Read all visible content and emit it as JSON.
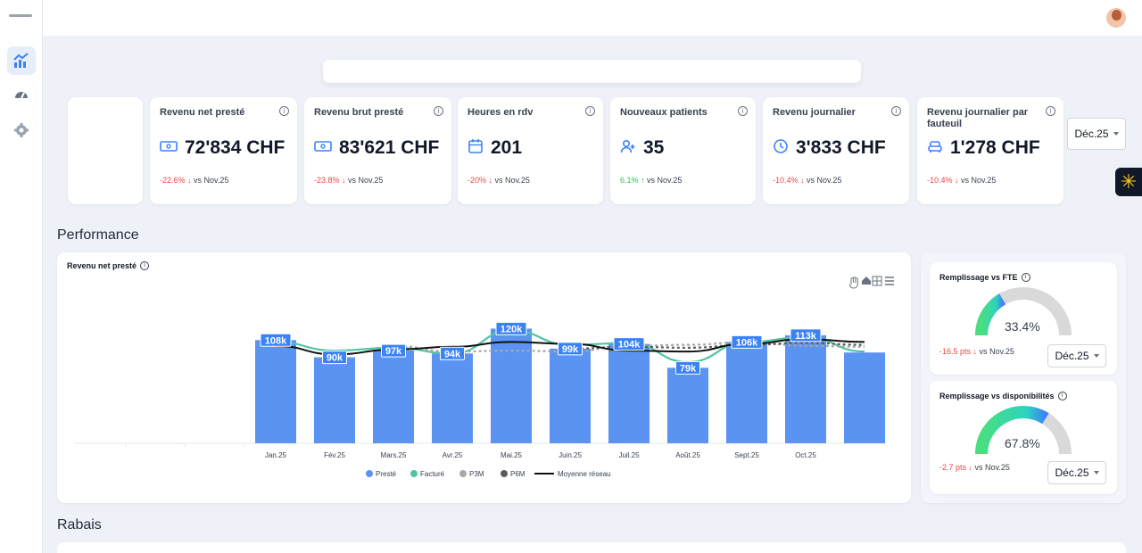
{
  "sidebar": {
    "items": [
      {
        "icon": "chart-trend-icon",
        "active": true
      },
      {
        "icon": "gauge-icon",
        "active": false
      },
      {
        "icon": "gear-icon",
        "active": false
      }
    ]
  },
  "kpis": [
    {
      "title": "Revenu net presté",
      "icon": "money-icon",
      "value": "72'834 CHF",
      "delta": "-22.6% ↓",
      "delta_color": "#ef4444",
      "compare": " vs Nov.25"
    },
    {
      "title": "Revenu brut presté",
      "icon": "money-icon",
      "value": "83'621 CHF",
      "delta": "-23.8% ↓",
      "delta_color": "#ef4444",
      "compare": " vs Nov.25"
    },
    {
      "title": "Heures en rdv",
      "icon": "calendar-icon",
      "value": "201",
      "delta": "-20% ↓",
      "delta_color": "#ef4444",
      "compare": " vs Nov.25"
    },
    {
      "title": "Nouveaux patients",
      "icon": "user-plus-icon",
      "value": "35",
      "delta": "6.1% ↑",
      "delta_color": "#22c55e",
      "compare": " vs Nov.25"
    },
    {
      "title": "Revenu journalier",
      "icon": "clock-icon",
      "value": "3'833 CHF",
      "delta": "-10.4% ↓",
      "delta_color": "#ef4444",
      "compare": " vs Nov.25"
    },
    {
      "title": "Revenu journalier par fauteuil",
      "icon": "armchair-icon",
      "value": "1'278 CHF",
      "delta": "-10.4% ↓",
      "delta_color": "#ef4444",
      "compare": " vs Nov.25"
    }
  ],
  "period_select": "Déc.25",
  "sections": {
    "performance": "Performance",
    "rabais": "Rabais"
  },
  "chart_title": "Revenu net presté",
  "chart_data": {
    "type": "bar",
    "categories": [
      "",
      "",
      "",
      "Jan.25",
      "Fév.25",
      "Mars.25",
      "Avr.25",
      "Mai.25",
      "Juin.25",
      "Juil.25",
      "Août.25",
      "Sept.25",
      "Oct.25",
      ""
    ],
    "series": [
      {
        "name": "Presté",
        "type": "bar",
        "color": "#5b93f3",
        "values": [
          null,
          null,
          null,
          108,
          90,
          97,
          94,
          120,
          99,
          104,
          79,
          106,
          113,
          95
        ]
      },
      {
        "name": "Facturé",
        "type": "line",
        "color": "#4fc4a4",
        "values": [
          null,
          null,
          null,
          106,
          97,
          100,
          94,
          118,
          103,
          105,
          85,
          106,
          111,
          96
        ]
      },
      {
        "name": "P3M",
        "type": "line",
        "dash": true,
        "color": "#a8a8a8",
        "values": [
          null,
          null,
          null,
          null,
          null,
          102,
          96,
          97,
          96,
          102,
          103,
          106,
          102,
          101
        ]
      },
      {
        "name": "P6M",
        "type": "line",
        "dash": true,
        "color": "#5c5c5c",
        "values": [
          null,
          null,
          null,
          null,
          null,
          null,
          null,
          null,
          99,
          101,
          100,
          103,
          105,
          103
        ]
      },
      {
        "name": "Moyenne réseau",
        "type": "line",
        "color": "#111111",
        "values": [
          null,
          null,
          null,
          102,
          93,
          98,
          101,
          106,
          104,
          97,
          96,
          104,
          109,
          106
        ]
      }
    ],
    "bar_labels": [
      "108k",
      "90k",
      "97k",
      "94k",
      "120k",
      "99k",
      "104k",
      "79k",
      "106k",
      "113k"
    ],
    "ylim": [
      0,
      140
    ],
    "legend": "bottom-center"
  },
  "gauges": [
    {
      "title": "Remplissage vs FTE",
      "value_text": "33.4%",
      "value": 33.4,
      "delta": "-16.5 pts ↓",
      "compare": " vs Nov.25",
      "select": "Déc.25"
    },
    {
      "title": "Remplissage vs disponibilités",
      "value_text": "67.8%",
      "value": 67.8,
      "delta": "-2.7 pts ↓",
      "compare": " vs Nov.25",
      "select": "Déc.25"
    }
  ]
}
